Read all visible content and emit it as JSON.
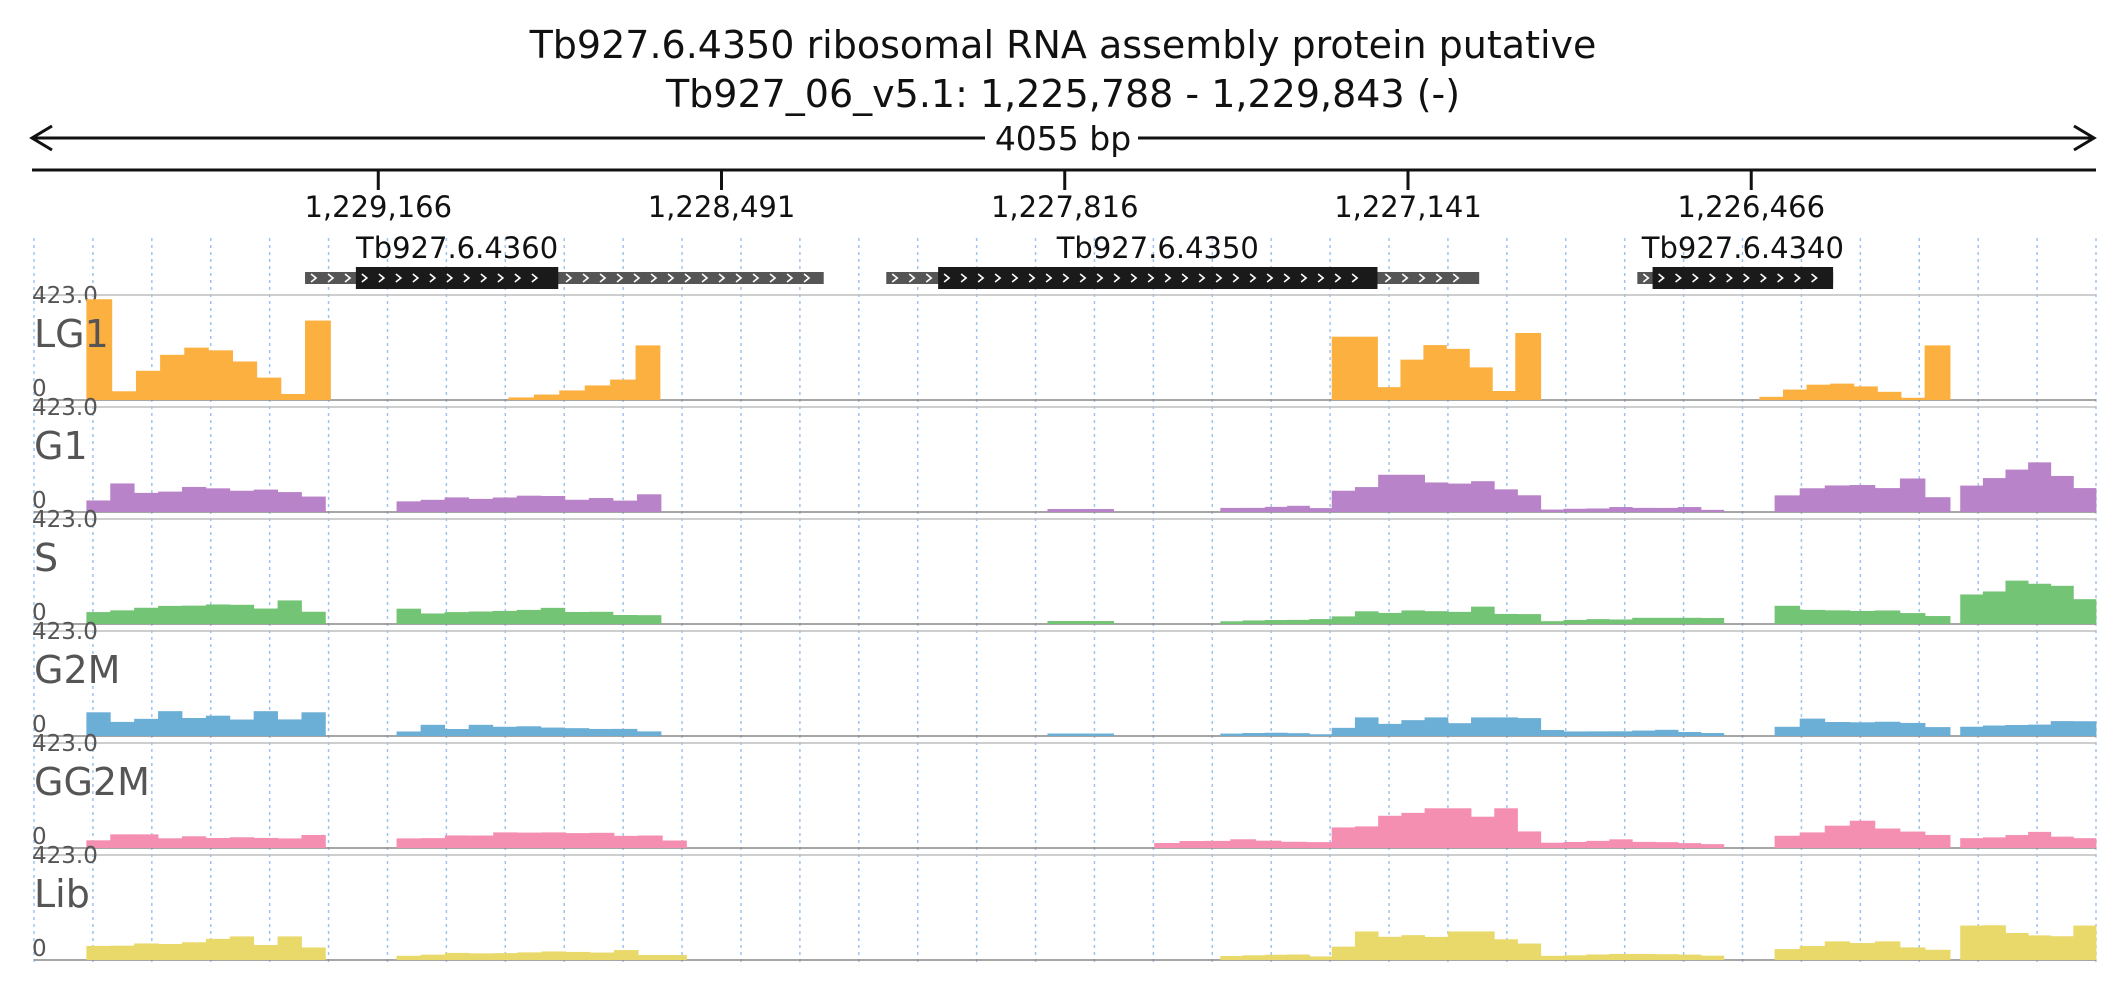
{
  "chart_data": {
    "type": "area",
    "title_line1": "Tb927.6.4350  ribosomal RNA assembly protein  putative",
    "title_line2": "Tb927_06_v5.1: 1,225,788 - 1,229,843 (-)",
    "span_label": "4055 bp",
    "region": {
      "start": 1229843,
      "end": 1225788,
      "strand": "-"
    },
    "axis_ticks": [
      "1,229,166",
      "1,228,491",
      "1,227,816",
      "1,227,141",
      "1,226,466"
    ],
    "axis_tick_values": [
      1229166,
      1228491,
      1227816,
      1227141,
      1226466
    ],
    "genes": [
      {
        "name": "Tb927.6.4360",
        "utr_start": 1229310,
        "cds_start": 1229210,
        "cds_end": 1228812,
        "utr_end": 1228290
      },
      {
        "name": "Tb927.6.4350",
        "utr_start": 1228167,
        "cds_start": 1228065,
        "cds_end": 1227201,
        "utr_end": 1227001
      },
      {
        "name": "Tb927.6.4340",
        "utr_start": 1226690,
        "cds_start": 1226660,
        "cds_end": 1226305,
        "utr_end": 1226305
      }
    ],
    "ymax_label": "423.0",
    "ymin_label": "0",
    "ymax": 423.0,
    "tracks": [
      {
        "name": "LG1",
        "color": "#fbb040",
        "segments": [
          {
            "from": 1229740,
            "to": 1229690,
            "peak": 406,
            "shape": "flat"
          },
          {
            "from": 1229690,
            "to": 1229310,
            "peak": 255,
            "shape": "hump"
          },
          {
            "from": 1229310,
            "to": 1229260,
            "peak": 320,
            "shape": "flat"
          },
          {
            "from": 1228910,
            "to": 1228660,
            "peak": 95,
            "shape": "rise"
          },
          {
            "from": 1228660,
            "to": 1228612,
            "peak": 220,
            "shape": "flat"
          },
          {
            "from": 1227291,
            "to": 1227201,
            "peak": 255,
            "shape": "flat"
          },
          {
            "from": 1227201,
            "to": 1226930,
            "peak": 270,
            "shape": "hump"
          },
          {
            "from": 1226930,
            "to": 1226880,
            "peak": 270,
            "shape": "flat"
          },
          {
            "from": 1226450,
            "to": 1226125,
            "peak": 80,
            "shape": "hump"
          },
          {
            "from": 1226125,
            "to": 1226075,
            "peak": 220,
            "shape": "flat"
          }
        ]
      },
      {
        "name": "G1",
        "color": "#b883c9",
        "segments": [
          {
            "from": 1229740,
            "to": 1229270,
            "peak": 115,
            "shape": "noisy"
          },
          {
            "from": 1229130,
            "to": 1228610,
            "peak": 75,
            "shape": "noisy"
          },
          {
            "from": 1227850,
            "to": 1227720,
            "peak": 12,
            "shape": "flat"
          },
          {
            "from": 1227510,
            "to": 1227291,
            "peak": 25,
            "shape": "noisy"
          },
          {
            "from": 1227291,
            "to": 1226880,
            "peak": 150,
            "shape": "noisy"
          },
          {
            "from": 1226880,
            "to": 1226520,
            "peak": 20,
            "shape": "noisy"
          },
          {
            "from": 1226420,
            "to": 1226075,
            "peak": 135,
            "shape": "noisy"
          },
          {
            "from": 1226055,
            "to": 1225788,
            "peak": 200,
            "shape": "noisy"
          }
        ]
      },
      {
        "name": "S",
        "color": "#74c476",
        "segments": [
          {
            "from": 1229740,
            "to": 1229270,
            "peak": 95,
            "shape": "noisy"
          },
          {
            "from": 1229130,
            "to": 1228610,
            "peak": 65,
            "shape": "noisy"
          },
          {
            "from": 1227850,
            "to": 1227720,
            "peak": 12,
            "shape": "flat"
          },
          {
            "from": 1227510,
            "to": 1227291,
            "peak": 20,
            "shape": "noisy"
          },
          {
            "from": 1227291,
            "to": 1226880,
            "peak": 70,
            "shape": "noisy"
          },
          {
            "from": 1226880,
            "to": 1226520,
            "peak": 25,
            "shape": "noisy"
          },
          {
            "from": 1226420,
            "to": 1226075,
            "peak": 75,
            "shape": "noisy"
          },
          {
            "from": 1226055,
            "to": 1225788,
            "peak": 200,
            "shape": "noisy"
          }
        ]
      },
      {
        "name": "G2M",
        "color": "#6baed6",
        "segments": [
          {
            "from": 1229740,
            "to": 1229270,
            "peak": 100,
            "shape": "noisy"
          },
          {
            "from": 1229130,
            "to": 1228610,
            "peak": 45,
            "shape": "noisy"
          },
          {
            "from": 1227850,
            "to": 1227720,
            "peak": 10,
            "shape": "flat"
          },
          {
            "from": 1227510,
            "to": 1227291,
            "peak": 15,
            "shape": "noisy"
          },
          {
            "from": 1227291,
            "to": 1226880,
            "peak": 75,
            "shape": "noisy"
          },
          {
            "from": 1226880,
            "to": 1226520,
            "peak": 25,
            "shape": "noisy"
          },
          {
            "from": 1226420,
            "to": 1226075,
            "peak": 70,
            "shape": "noisy"
          },
          {
            "from": 1226055,
            "to": 1225788,
            "peak": 60,
            "shape": "noisy"
          }
        ]
      },
      {
        "name": "GG2M",
        "color": "#f48fb1",
        "segments": [
          {
            "from": 1229740,
            "to": 1229270,
            "peak": 55,
            "shape": "noisy"
          },
          {
            "from": 1229130,
            "to": 1228560,
            "peak": 75,
            "shape": "noisy"
          },
          {
            "from": 1227640,
            "to": 1227291,
            "peak": 40,
            "shape": "noisy"
          },
          {
            "from": 1227291,
            "to": 1226880,
            "peak": 160,
            "shape": "noisy"
          },
          {
            "from": 1226880,
            "to": 1226520,
            "peak": 35,
            "shape": "noisy"
          },
          {
            "from": 1226420,
            "to": 1226075,
            "peak": 110,
            "shape": "noisy"
          },
          {
            "from": 1226055,
            "to": 1225788,
            "peak": 65,
            "shape": "noisy"
          }
        ]
      },
      {
        "name": "Lib",
        "color": "#e8d96a",
        "segments": [
          {
            "from": 1229740,
            "to": 1229270,
            "peak": 95,
            "shape": "noisy"
          },
          {
            "from": 1229130,
            "to": 1228560,
            "peak": 40,
            "shape": "noisy"
          },
          {
            "from": 1227510,
            "to": 1227291,
            "peak": 30,
            "shape": "noisy"
          },
          {
            "from": 1227291,
            "to": 1226880,
            "peak": 115,
            "shape": "noisy"
          },
          {
            "from": 1226880,
            "to": 1226520,
            "peak": 30,
            "shape": "noisy"
          },
          {
            "from": 1226420,
            "to": 1226075,
            "peak": 75,
            "shape": "noisy"
          },
          {
            "from": 1226055,
            "to": 1225788,
            "peak": 140,
            "shape": "noisy"
          }
        ]
      }
    ],
    "grid": true
  }
}
